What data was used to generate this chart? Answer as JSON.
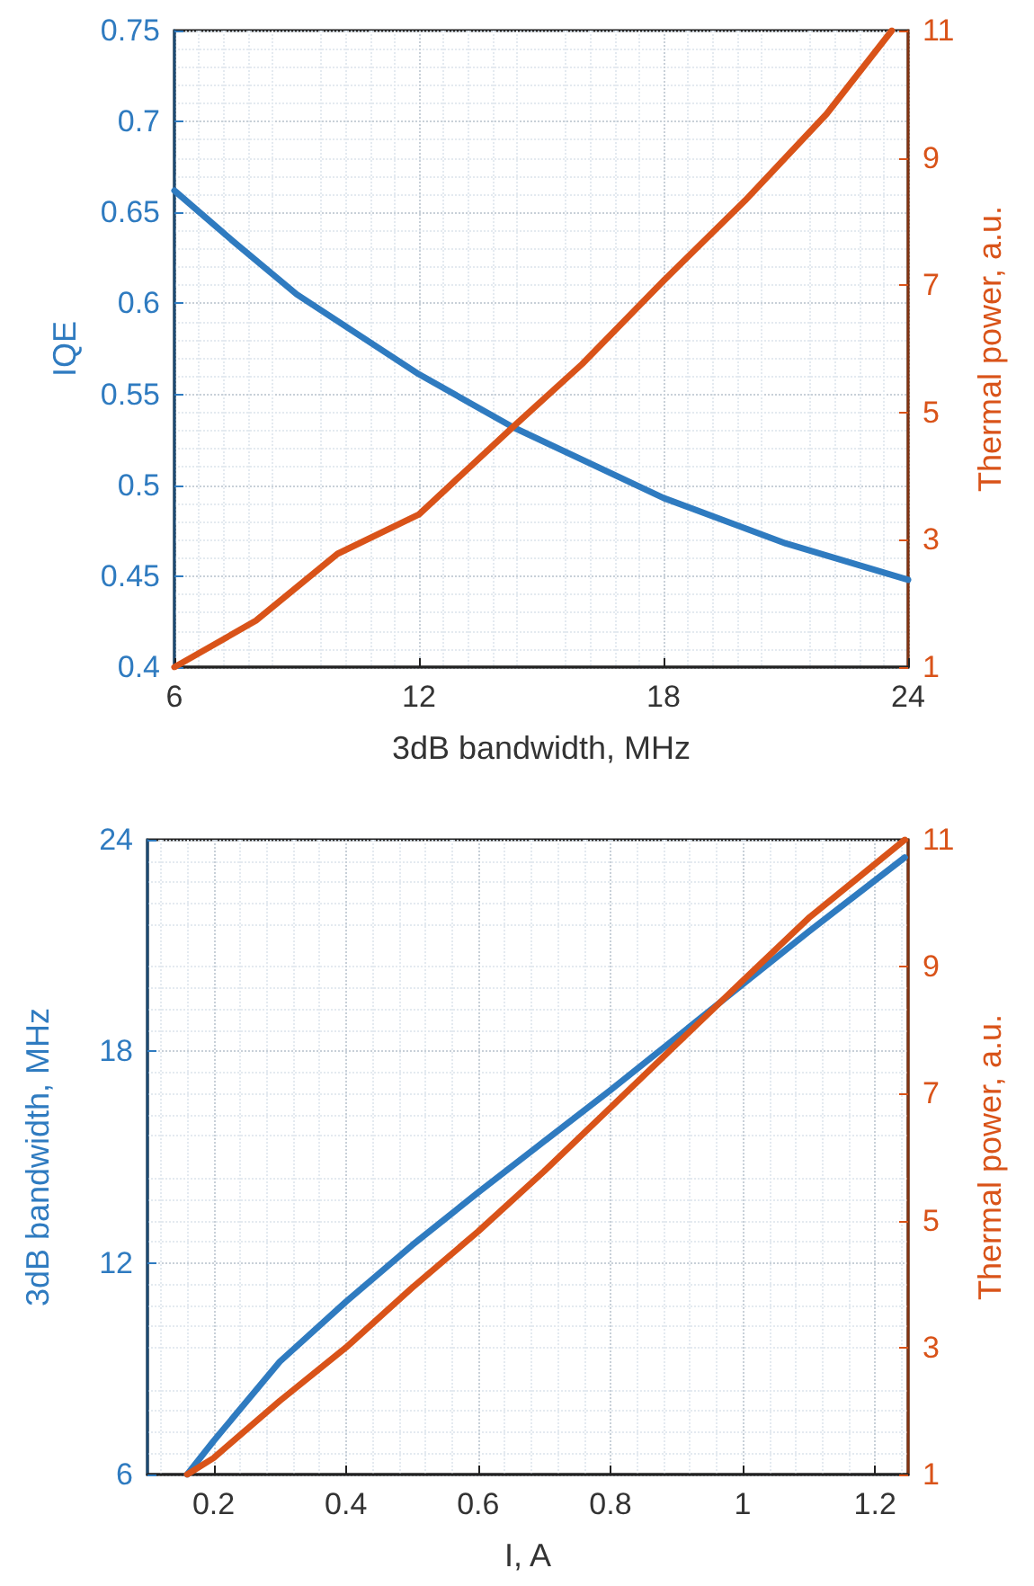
{
  "chart_data": [
    {
      "type": "line",
      "xlabel": "3dB bandwidth, MHz",
      "ylabel": "IQE",
      "y2label": "Thermal power, a.u.",
      "xlim": [
        6,
        24
      ],
      "xticks": [
        6,
        12,
        18,
        24
      ],
      "ylim": [
        0.4,
        0.75
      ],
      "yticks": [
        0.4,
        0.45,
        0.5,
        0.55,
        0.6,
        0.65,
        0.7,
        0.75
      ],
      "y2lim": [
        1,
        11
      ],
      "y2ticks": [
        1,
        3,
        5,
        7,
        9,
        11
      ],
      "grid": true,
      "marker": "none",
      "line_style": "solid",
      "series": [
        {
          "color": "#2f7bc0",
          "x": [
            6,
            7.5,
            9,
            12,
            14.3,
            18,
            21,
            24
          ],
          "values": [
            0.662,
            0.633,
            0.605,
            0.561,
            0.532,
            0.493,
            0.468,
            0.448
          ]
        },
        {
          "color": "#d95319",
          "axis": "y2",
          "x": [
            6,
            8,
            10,
            12,
            14.3,
            16,
            18,
            20,
            22,
            23.6
          ],
          "values": [
            1,
            1.73,
            2.78,
            3.4,
            4.77,
            5.76,
            7.07,
            8.33,
            9.69,
            11
          ]
        }
      ]
    },
    {
      "type": "line",
      "xlabel": "I, A",
      "ylabel": "3dB bandwidth, MHz",
      "y2label": "Thermal power, a.u.",
      "xlim": [
        0.1,
        1.25
      ],
      "xticks": [
        0.2,
        0.4,
        0.6,
        0.8,
        1,
        1.2
      ],
      "ylim": [
        6,
        24
      ],
      "yticks": [
        6,
        12,
        18,
        24
      ],
      "y2lim": [
        1,
        11
      ],
      "y2ticks": [
        1,
        3,
        5,
        7,
        9,
        11
      ],
      "grid": true,
      "marker": "none",
      "line_style": "solid",
      "series": [
        {
          "color": "#2f7bc0",
          "x": [
            0.16,
            0.2,
            0.3,
            0.4,
            0.5,
            0.6,
            0.7,
            0.8,
            0.9,
            1.0,
            1.1,
            1.245
          ],
          "values": [
            6,
            6.95,
            9.2,
            10.9,
            12.5,
            14.0,
            15.45,
            16.9,
            18.4,
            19.9,
            21.4,
            23.5
          ]
        },
        {
          "color": "#d95319",
          "axis": "y2",
          "x": [
            0.16,
            0.2,
            0.3,
            0.4,
            0.5,
            0.6,
            0.7,
            0.8,
            0.9,
            1.0,
            1.1,
            1.245
          ],
          "values": [
            1,
            1.26,
            2.16,
            3.0,
            3.94,
            4.83,
            5.78,
            6.78,
            7.78,
            8.78,
            9.77,
            11
          ]
        }
      ]
    }
  ]
}
